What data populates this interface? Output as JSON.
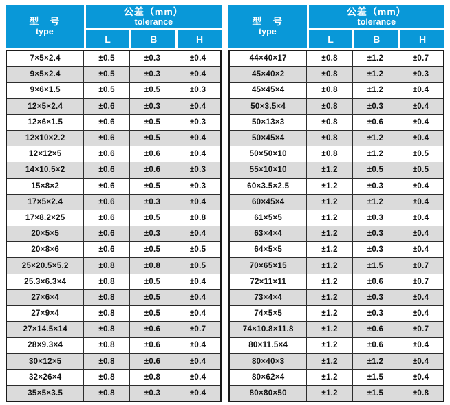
{
  "header": {
    "type_zh": "型　号",
    "type_en": "type",
    "tolerance_zh": "公差（mm）",
    "tolerance_en": "tolerance",
    "columns": [
      "L",
      "B",
      "H"
    ]
  },
  "colors": {
    "header_blue": "#0998d8",
    "row_alt_gray": "#dbdbdb",
    "border_dark": "#2d2d2d",
    "header_text": "#ffffff"
  },
  "tables": [
    {
      "name": "left-tolerance-table",
      "rows": [
        [
          "7×5×2.4",
          "±0.5",
          "±0.3",
          "±0.4"
        ],
        [
          "9×5×2.4",
          "±0.5",
          "±0.3",
          "±0.4"
        ],
        [
          "9×6×1.5",
          "±0.5",
          "±0.5",
          "±0.3"
        ],
        [
          "12×5×2.4",
          "±0.6",
          "±0.3",
          "±0.4"
        ],
        [
          "12×6×1.5",
          "±0.6",
          "±0.5",
          "±0.3"
        ],
        [
          "12×10×2.2",
          "±0.6",
          "±0.5",
          "±0.4"
        ],
        [
          "12×12×5",
          "±0.6",
          "±0.6",
          "±0.4"
        ],
        [
          "14×10.5×2",
          "±0.6",
          "±0.6",
          "±0.3"
        ],
        [
          "15×8×2",
          "±0.6",
          "±0.5",
          "±0.3"
        ],
        [
          "17×5×2.4",
          "±0.6",
          "±0.3",
          "±0.4"
        ],
        [
          "17×8.2×25",
          "±0.6",
          "±0.5",
          "±0.8"
        ],
        [
          "20×5×5",
          "±0.6",
          "±0.3",
          "±0.4"
        ],
        [
          "20×8×6",
          "±0.6",
          "±0.5",
          "±0.5"
        ],
        [
          "25×20.5×5.2",
          "±0.8",
          "±0.8",
          "±0.5"
        ],
        [
          "25.3×6.3×4",
          "±0.8",
          "±0.5",
          "±0.4"
        ],
        [
          "27×6×4",
          "±0.8",
          "±0.5",
          "±0.4"
        ],
        [
          "27×9×4",
          "±0.8",
          "±0.5",
          "±0.4"
        ],
        [
          "27×14.5×14",
          "±0.8",
          "±0.6",
          "±0.7"
        ],
        [
          "28×9.3×4",
          "±0.8",
          "±0.6",
          "±0.4"
        ],
        [
          "30×12×5",
          "±0.8",
          "±0.6",
          "±0.4"
        ],
        [
          "32×26×4",
          "±0.8",
          "±0.8",
          "±0.4"
        ],
        [
          "35×5×3.5",
          "±0.8",
          "±0.3",
          "±0.4"
        ]
      ]
    },
    {
      "name": "right-tolerance-table",
      "rows": [
        [
          "44×40×17",
          "±0.8",
          "±1.2",
          "±0.7"
        ],
        [
          "45×40×2",
          "±0.8",
          "±1.2",
          "±0.3"
        ],
        [
          "45×45×4",
          "±0.8",
          "±1.2",
          "±0.4"
        ],
        [
          "50×3.5×4",
          "±0.8",
          "±0.3",
          "±0.4"
        ],
        [
          "50×13×3",
          "±0.8",
          "±0.6",
          "±0.4"
        ],
        [
          "50×45×4",
          "±0.8",
          "±1.2",
          "±0.4"
        ],
        [
          "50×50×10",
          "±0.8",
          "±1.2",
          "±0.5"
        ],
        [
          "55×10×10",
          "±1.2",
          "±0.5",
          "±0.5"
        ],
        [
          "60×3.5×2.5",
          "±1.2",
          "±0.3",
          "±0.4"
        ],
        [
          "60×45×4",
          "±1.2",
          "±1.2",
          "±0.4"
        ],
        [
          "61×5×5",
          "±1.2",
          "±0.3",
          "±0.4"
        ],
        [
          "63×4×4",
          "±1.2",
          "±0.3",
          "±0.4"
        ],
        [
          "64×5×5",
          "±1.2",
          "±0.3",
          "±0.4"
        ],
        [
          "70×65×15",
          "±1.2",
          "±1.5",
          "±0.7"
        ],
        [
          "72×11×11",
          "±1.2",
          "±0.6",
          "±0.7"
        ],
        [
          "73×4×4",
          "±1.2",
          "±0.3",
          "±0.4"
        ],
        [
          "74×5×5",
          "±1.2",
          "±0.3",
          "±0.4"
        ],
        [
          "74×10.8×11.8",
          "±1.2",
          "±0.6",
          "±0.7"
        ],
        [
          "80×11.5×4",
          "±1.2",
          "±0.6",
          "±0.4"
        ],
        [
          "80×40×3",
          "±1.2",
          "±1.2",
          "±0.4"
        ],
        [
          "80×62×4",
          "±1.2",
          "±1.5",
          "±0.4"
        ],
        [
          "80×80×50",
          "±1.2",
          "±1.5",
          "±0.8"
        ]
      ]
    }
  ]
}
